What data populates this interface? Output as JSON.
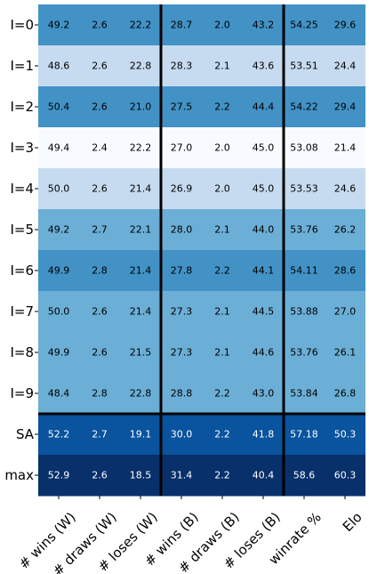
{
  "chart_data": {
    "type": "heatmap",
    "colormap": "Blues",
    "rows": [
      "I=0",
      "I=1",
      "I=2",
      "I=3",
      "I=4",
      "I=5",
      "I=6",
      "I=7",
      "I=8",
      "I=9",
      "SA",
      "max"
    ],
    "columns": [
      "# wins (W)",
      "# draws (W)",
      "# loses (W)",
      "# wins (B)",
      "# draws (B)",
      "# loses (B)",
      "winrate %",
      "Elo"
    ],
    "values": [
      [
        "49.2",
        "2.6",
        "22.2",
        "28.7",
        "2.0",
        "43.2",
        "54.25",
        "29.6"
      ],
      [
        "48.6",
        "2.6",
        "22.8",
        "28.3",
        "2.1",
        "43.6",
        "53.51",
        "24.4"
      ],
      [
        "50.4",
        "2.6",
        "21.0",
        "27.5",
        "2.2",
        "44.4",
        "54.22",
        "29.4"
      ],
      [
        "49.4",
        "2.4",
        "22.2",
        "27.0",
        "2.0",
        "45.0",
        "53.08",
        "21.4"
      ],
      [
        "50.0",
        "2.6",
        "21.4",
        "26.9",
        "2.0",
        "45.0",
        "53.53",
        "24.6"
      ],
      [
        "49.2",
        "2.7",
        "22.1",
        "28.0",
        "2.1",
        "44.0",
        "53.76",
        "26.2"
      ],
      [
        "49.9",
        "2.8",
        "21.4",
        "27.8",
        "2.2",
        "44.1",
        "54.11",
        "28.6"
      ],
      [
        "50.0",
        "2.6",
        "21.4",
        "27.3",
        "2.1",
        "44.5",
        "53.88",
        "27.0"
      ],
      [
        "49.9",
        "2.6",
        "21.5",
        "27.3",
        "2.1",
        "44.6",
        "53.76",
        "26.1"
      ],
      [
        "48.4",
        "2.8",
        "22.8",
        "28.8",
        "2.2",
        "43.0",
        "53.84",
        "26.8"
      ],
      [
        "52.2",
        "2.7",
        "19.1",
        "30.0",
        "2.2",
        "41.8",
        "57.18",
        "50.3"
      ],
      [
        "52.9",
        "2.6",
        "18.5",
        "31.4",
        "2.2",
        "40.4",
        "58.6",
        "60.3"
      ]
    ],
    "row_colors": [
      "#4292c6",
      "#c6dbef",
      "#4292c6",
      "#f7fbff",
      "#c6dbef",
      "#6baed6",
      "#4292c6",
      "#6baed6",
      "#6baed6",
      "#6baed6",
      "#0a539e",
      "#08306b"
    ],
    "text_colors": [
      "#000000",
      "#000000",
      "#000000",
      "#000000",
      "#000000",
      "#000000",
      "#000000",
      "#000000",
      "#000000",
      "#000000",
      "#ffffff",
      "#ffffff"
    ]
  }
}
